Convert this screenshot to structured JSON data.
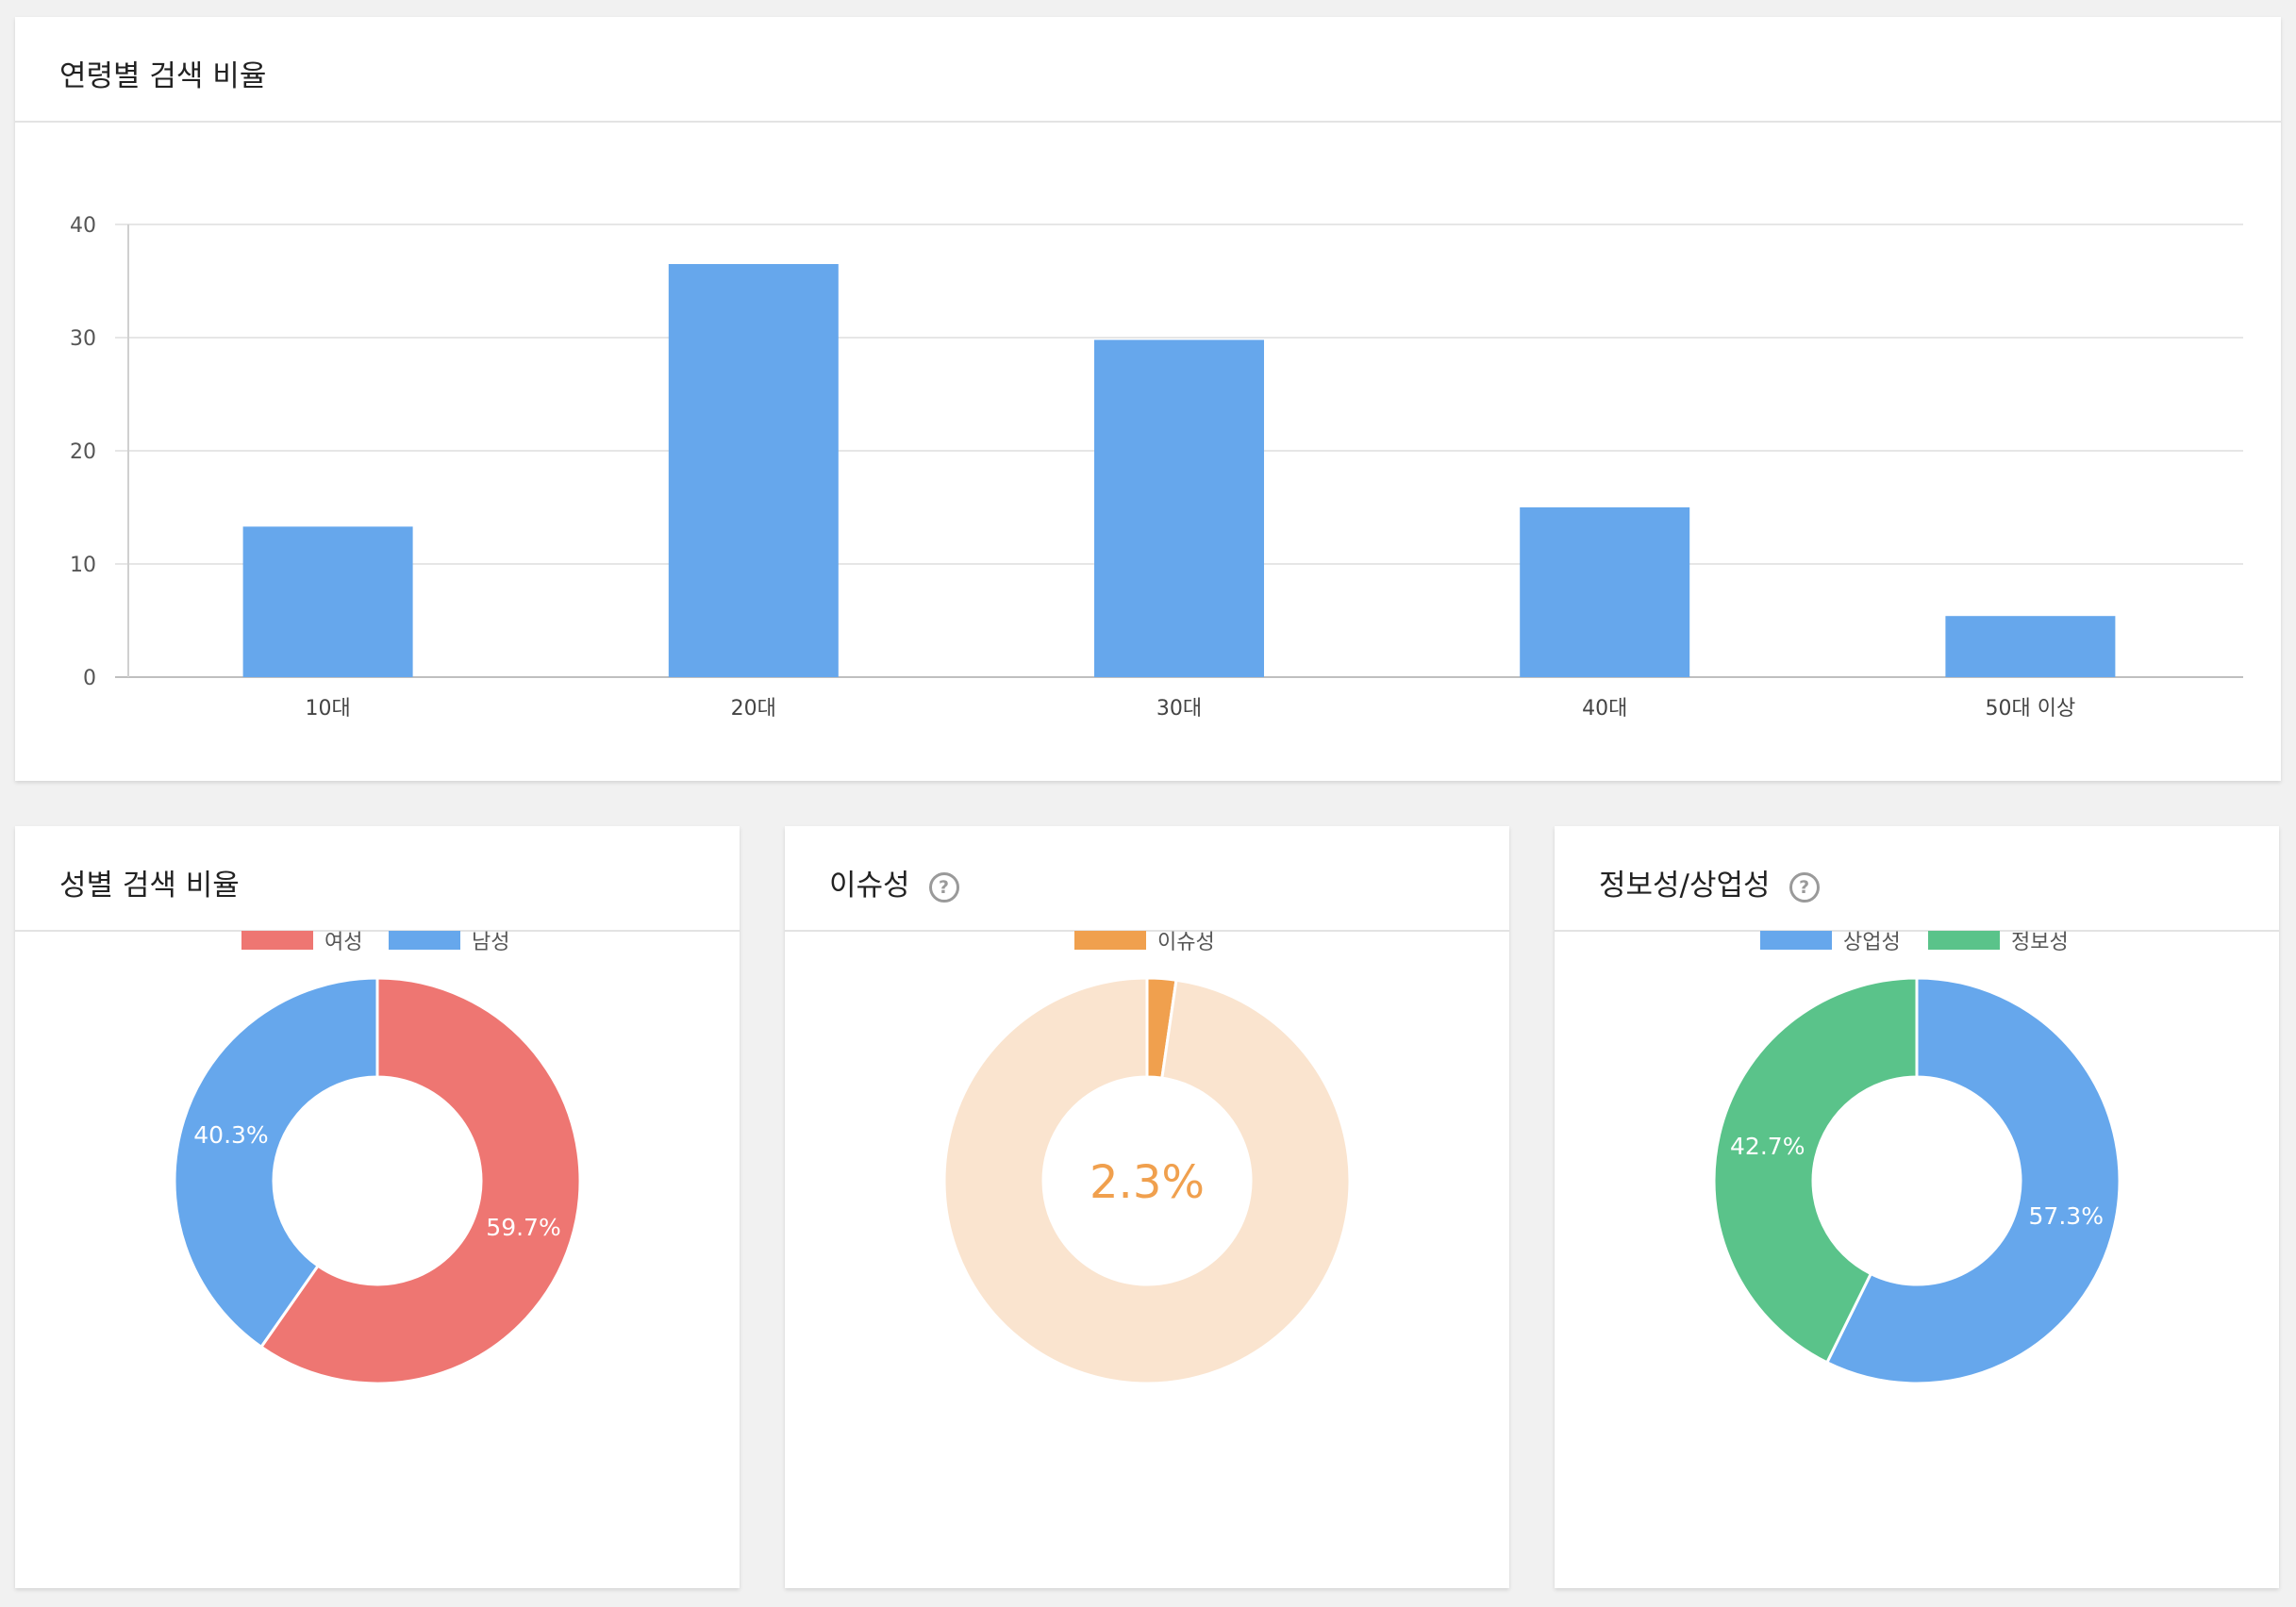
{
  "age_card": {
    "title": "연령별 검색 비율"
  },
  "gender_card": {
    "title": "성별 검색 비율"
  },
  "issue_card": {
    "title": "이슈성",
    "help_icon": "question-circle-icon"
  },
  "info_card": {
    "title": "정보성/상업성",
    "help_icon": "question-circle-icon"
  },
  "chart_data": [
    {
      "type": "bar",
      "categories": [
        "10대",
        "20대",
        "30대",
        "40대",
        "50대 이상"
      ],
      "values": [
        13.3,
        36.5,
        29.8,
        15.0,
        5.4
      ],
      "ylim": [
        0,
        40
      ],
      "yticks": [
        0,
        10,
        20,
        30,
        40
      ],
      "grid": true,
      "color": "#66a7ec"
    },
    {
      "type": "pie",
      "donut": true,
      "legend": "top",
      "slices": [
        {
          "label": "여성",
          "value": 59.7,
          "display": "59.7%",
          "color": "#ee7672"
        },
        {
          "label": "남성",
          "value": 40.3,
          "display": "40.3%",
          "color": "#66a7ec"
        }
      ]
    },
    {
      "type": "pie",
      "donut": true,
      "legend": "top",
      "center_label": "2.3%",
      "slices": [
        {
          "label": "이슈성",
          "value": 2.3,
          "color": "#f0a04e",
          "legend": true
        },
        {
          "label": "",
          "value": 97.7,
          "color": "#fae4cf",
          "legend": false
        }
      ]
    },
    {
      "type": "pie",
      "donut": true,
      "legend": "top",
      "slices": [
        {
          "label": "상업성",
          "value": 57.3,
          "display": "57.3%",
          "color": "#66a7ec"
        },
        {
          "label": "정보성",
          "value": 42.7,
          "display": "42.7%",
          "color": "#5ac38a"
        }
      ]
    }
  ]
}
